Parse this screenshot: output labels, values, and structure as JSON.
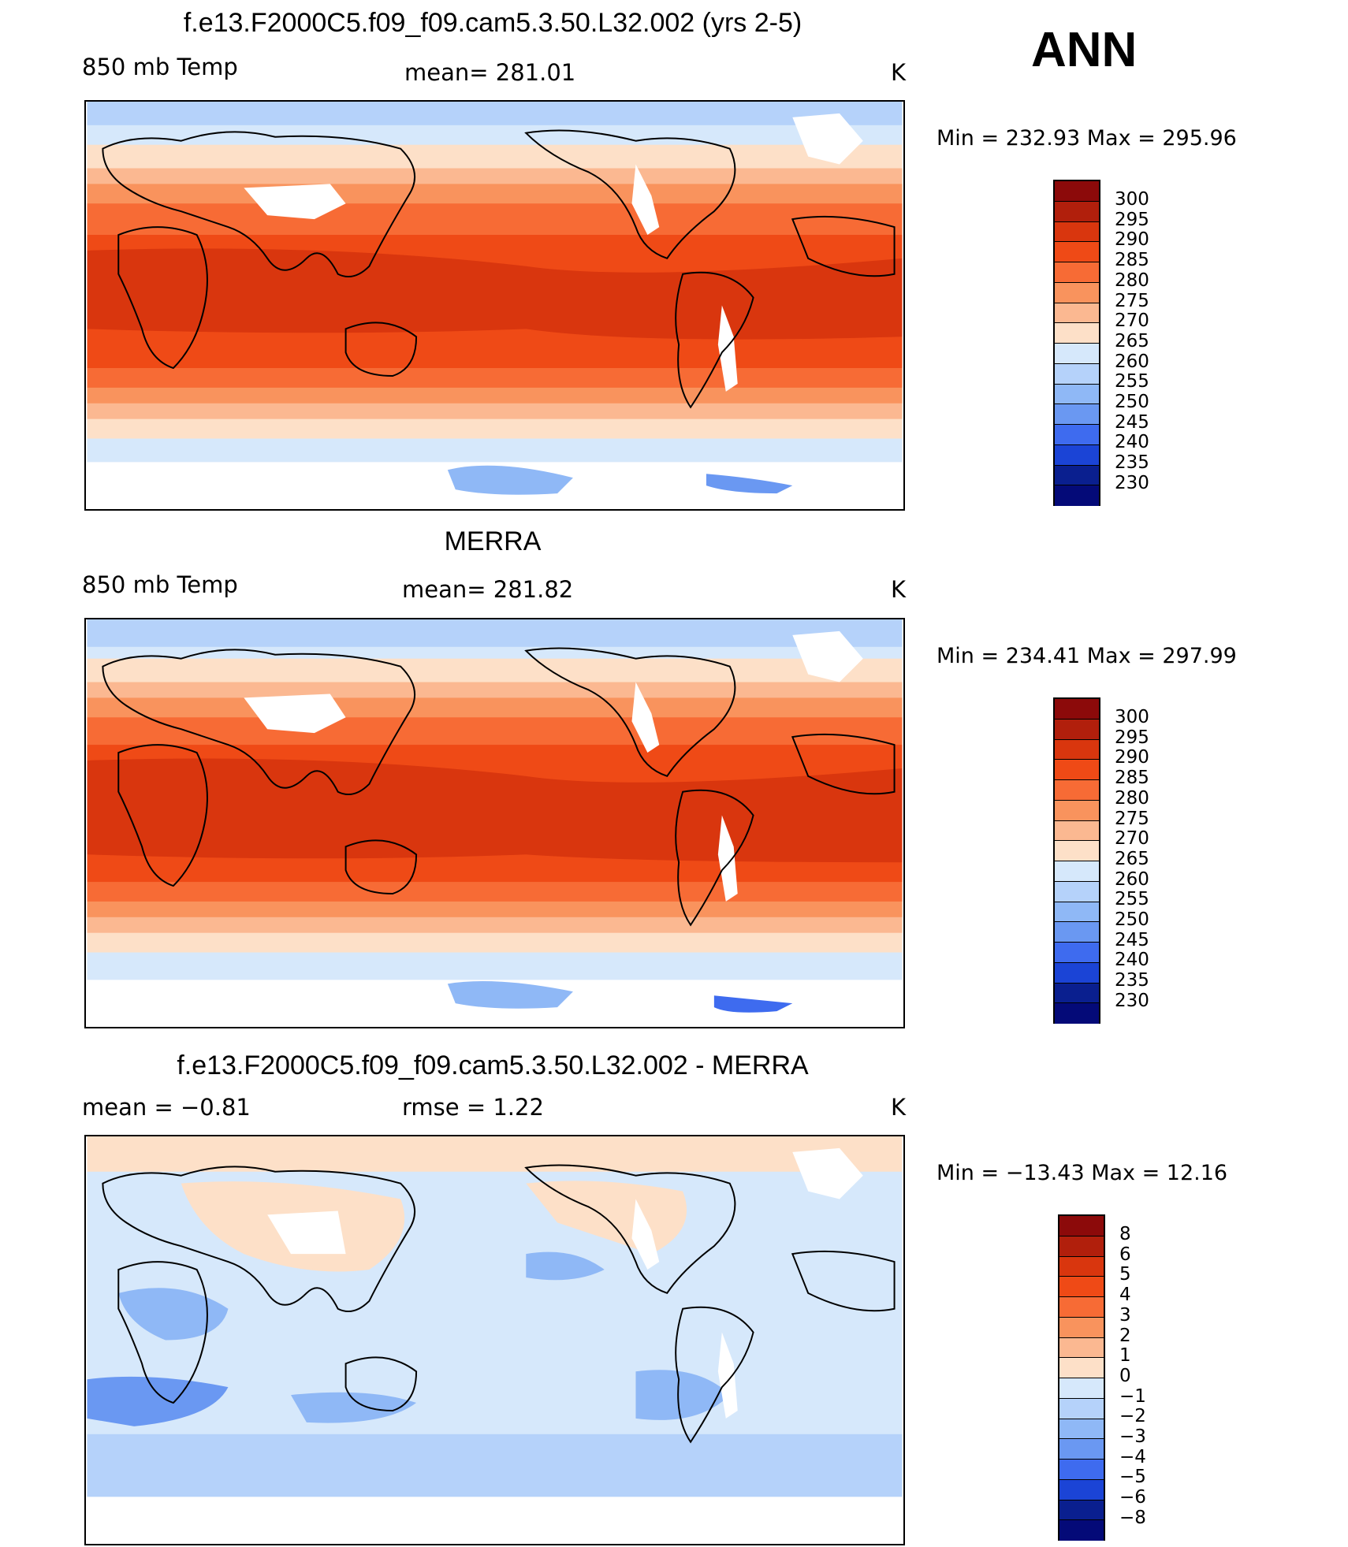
{
  "header": {
    "season": "ANN"
  },
  "panels": [
    {
      "id": "model",
      "title": "f.e13.F2000C5.f09_f09.cam5.3.50.L32.002 (yrs 2-5)",
      "left_text": "850 mb Temp",
      "center_text": "mean= 281.01",
      "units": "K",
      "minmax": "Min = 232.93 Max = 295.96",
      "colorbar_labels": [
        "300",
        "295",
        "290",
        "285",
        "280",
        "275",
        "270",
        "265",
        "260",
        "255",
        "250",
        "245",
        "240",
        "235",
        "230"
      ]
    },
    {
      "id": "obs",
      "title": "MERRA",
      "left_text": "850 mb Temp",
      "center_text": "mean= 281.82",
      "units": "K",
      "minmax": "Min = 234.41 Max = 297.99",
      "colorbar_labels": [
        "300",
        "295",
        "290",
        "285",
        "280",
        "275",
        "270",
        "265",
        "260",
        "255",
        "250",
        "245",
        "240",
        "235",
        "230"
      ]
    },
    {
      "id": "diff",
      "title": "f.e13.F2000C5.f09_f09.cam5.3.50.L32.002 - MERRA",
      "left_text": "mean =   −0.81",
      "center_text": "rmse =    1.22",
      "units": "K",
      "minmax": "Min = −13.43 Max =   12.16",
      "colorbar_labels": [
        "8",
        "6",
        "5",
        "4",
        "3",
        "2",
        "1",
        "0",
        "−1",
        "−2",
        "−3",
        "−4",
        "−5",
        "−6",
        "−8"
      ]
    }
  ],
  "colors": {
    "abs_scale": [
      "#8c0a0a",
      "#b11f0c",
      "#d9360e",
      "#ef4a16",
      "#f76b35",
      "#f9935d",
      "#fbb891",
      "#fde0c8",
      "#d6e8fb",
      "#b5d2fa",
      "#8fb8f6",
      "#6a98f2",
      "#3e6bef",
      "#1b44d6",
      "#0a1f8f",
      "#040a78"
    ],
    "diff_scale": [
      "#8c0a0a",
      "#b11f0c",
      "#d9360e",
      "#ef4a16",
      "#f76b35",
      "#f9935d",
      "#fbb891",
      "#fde0c8",
      "#d6e8fb",
      "#b5d2fa",
      "#8fb8f6",
      "#6a98f2",
      "#3e6bef",
      "#1b44d6",
      "#0a1f8f",
      "#040a78"
    ]
  }
}
